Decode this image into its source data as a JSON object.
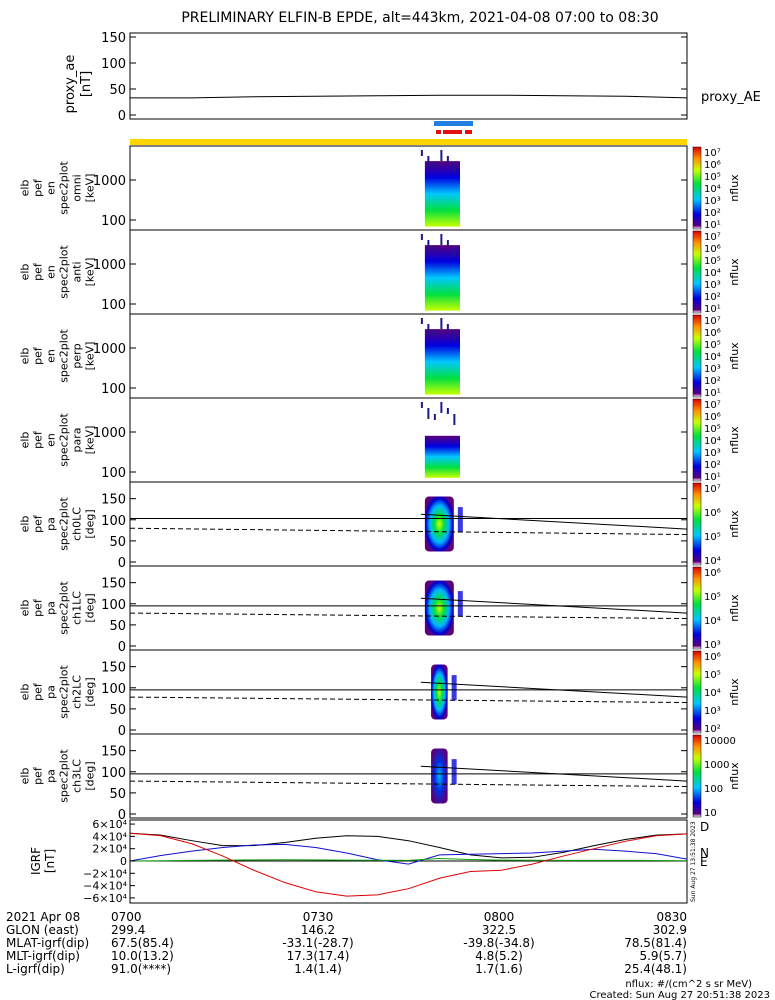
{
  "title": "PRELIMINARY ELFIN-B EPDE, alt=443km, 2021-04-08 07:00 to 08:30",
  "colors": {
    "bar_yellow": "#ffd500",
    "bar_blue": "#1f7fe0",
    "bar_red": "#e01010"
  },
  "proxy_panel": {
    "ylabel": [
      "proxy_ae",
      "[nT]"
    ],
    "yticks": [
      "150",
      "100",
      "50",
      "0"
    ],
    "legend": "proxy_AE"
  },
  "energy_panels": [
    {
      "ylabel": [
        "elb",
        "pef",
        "en",
        "spec2plot",
        "omni",
        "[keV]"
      ],
      "cb_ticks": [
        "10⁷",
        "10⁶",
        "10⁵",
        "10⁴",
        "10³",
        "10²",
        "10¹"
      ],
      "cb_label": "nflux"
    },
    {
      "ylabel": [
        "elb",
        "pef",
        "en",
        "spec2plot",
        "anti",
        "[keV]"
      ],
      "cb_ticks": [
        "10⁷",
        "10⁶",
        "10⁵",
        "10⁴",
        "10³",
        "10²",
        "10¹"
      ],
      "cb_label": "nflux"
    },
    {
      "ylabel": [
        "elb",
        "pef",
        "en",
        "spec2plot",
        "perp",
        "[keV]"
      ],
      "cb_ticks": [
        "10⁷",
        "10⁶",
        "10⁵",
        "10⁴",
        "10³",
        "10²",
        "10¹"
      ],
      "cb_label": "nflux"
    },
    {
      "ylabel": [
        "elb",
        "pef",
        "en",
        "spec2plot",
        "para",
        "[keV]"
      ],
      "cb_ticks": [
        "10⁷",
        "10⁶",
        "10⁵",
        "10⁴",
        "10³",
        "10²",
        "10¹"
      ],
      "cb_label": "nflux"
    }
  ],
  "energy_yticks": [
    "1000",
    "100"
  ],
  "pa_panels": [
    {
      "ylabel": [
        "elb",
        "pef",
        "pa",
        "spec2plot",
        "ch0LC",
        "[deg]"
      ],
      "cb_ticks": [
        "10⁷",
        "10⁶",
        "10⁵",
        "10⁴"
      ],
      "cb_label": "nflux"
    },
    {
      "ylabel": [
        "elb",
        "pef",
        "pa",
        "spec2plot",
        "ch1LC",
        "[deg]"
      ],
      "cb_ticks": [
        "10⁶",
        "10⁵",
        "10⁴",
        "10³"
      ],
      "cb_label": "nflux"
    },
    {
      "ylabel": [
        "elb",
        "pef",
        "pa",
        "spec2plot",
        "ch2LC",
        "[deg]"
      ],
      "cb_ticks": [
        "10⁶",
        "10⁵",
        "10⁴",
        "10³",
        "10²"
      ],
      "cb_label": "nflux"
    },
    {
      "ylabel": [
        "elb",
        "pef",
        "pa",
        "spec2plot",
        "ch3LC",
        "[deg]"
      ],
      "cb_ticks": [
        "10000",
        "1000",
        "100",
        "10"
      ],
      "cb_label": "nflux"
    }
  ],
  "pa_yticks": [
    "150",
    "100",
    "50",
    "0"
  ],
  "igrf_panel": {
    "ylabel": [
      "IGRF",
      "[nT]"
    ],
    "yticks": [
      "6×10⁴",
      "4×10⁴",
      "2×10⁴",
      "0",
      "−2×10⁴",
      "−4×10⁴",
      "−6×10⁴"
    ],
    "legend": [
      "D",
      "N",
      "E"
    ],
    "stamp": "Sun Aug 27 13:51:38 2023"
  },
  "footer": {
    "rows": [
      {
        "label": "2021 Apr 08",
        "vals": [
          "0700",
          "0730",
          "0800",
          "0830"
        ]
      },
      {
        "label": "GLON (east)",
        "vals": [
          "299.4",
          "146.2",
          "322.5",
          "302.9"
        ]
      },
      {
        "label": "MLAT-igrf(dip)",
        "vals": [
          "67.5(85.4)",
          "-33.1(-28.7)",
          "-39.8(-34.8)",
          "78.5(81.4)"
        ]
      },
      {
        "label": "MLT-igrf(dip)",
        "vals": [
          "10.0(13.2)",
          "17.3(17.4)",
          "4.8(5.2)",
          "5.9(5.7)"
        ]
      },
      {
        "label": "L-igrf(dip)",
        "vals": [
          "91.0(****)",
          "1.4(1.4)",
          "1.7(1.6)",
          "25.4(48.1)"
        ]
      }
    ],
    "units_note": "nflux: #/(cm^2 s sr MeV)",
    "created": "Created: Sun Aug 27 20:51:38 2023"
  },
  "chart_data": [
    {
      "type": "line",
      "panel": "proxy_ae",
      "title": "PRELIMINARY ELFIN-B EPDE, alt=443km, 2021-04-08 07:00 to 08:30",
      "xlabel": "",
      "ylabel": "proxy_ae [nT]",
      "ylim": [
        0,
        150
      ],
      "series": [
        {
          "name": "proxy_AE",
          "x": [
            "07:00",
            "07:10",
            "07:20",
            "07:30",
            "07:40",
            "07:50",
            "08:00",
            "08:10",
            "08:20",
            "08:30"
          ],
          "values": [
            33,
            33,
            35,
            36,
            37,
            38,
            38,
            37,
            36,
            33
          ]
        }
      ]
    },
    {
      "type": "heatmap",
      "panel": "en omni",
      "ylabel": "[keV]",
      "yscale": "log",
      "ylim": [
        50,
        7000
      ],
      "xlim": [
        "07:00",
        "08:30"
      ],
      "active_interval": [
        "07:47",
        "07:53"
      ],
      "colorbar": "nflux 10^1–10^7"
    },
    {
      "type": "heatmap",
      "panel": "en anti",
      "ylabel": "[keV]",
      "yscale": "log",
      "ylim": [
        50,
        7000
      ],
      "xlim": [
        "07:00",
        "08:30"
      ],
      "active_interval": [
        "07:47",
        "07:53"
      ],
      "colorbar": "nflux 10^1–10^7"
    },
    {
      "type": "heatmap",
      "panel": "en perp",
      "ylabel": "[keV]",
      "yscale": "log",
      "ylim": [
        50,
        7000
      ],
      "xlim": [
        "07:00",
        "08:30"
      ],
      "active_interval": [
        "07:47",
        "07:53"
      ],
      "colorbar": "nflux 10^1–10^7"
    },
    {
      "type": "heatmap",
      "panel": "en para",
      "ylabel": "[keV]",
      "yscale": "log",
      "ylim": [
        50,
        7000
      ],
      "xlim": [
        "07:00",
        "08:30"
      ],
      "active_interval": [
        "07:47",
        "07:53"
      ],
      "colorbar": "nflux 10^1–10^7"
    },
    {
      "type": "heatmap",
      "panel": "pa ch0LC",
      "ylabel": "[deg]",
      "ylim": [
        0,
        180
      ],
      "xlim": [
        "07:00",
        "08:30"
      ],
      "active_interval": [
        "07:47",
        "07:52"
      ],
      "lines": [
        {
          "style": "solid",
          "x": [
            "07:47",
            "08:30"
          ],
          "values": [
            113,
            78
          ]
        },
        {
          "style": "solid",
          "x": [
            "07:00",
            "08:30"
          ],
          "values": [
            103,
            103
          ]
        },
        {
          "style": "dashed",
          "x": [
            "07:00",
            "08:30"
          ],
          "values": [
            80,
            65
          ]
        }
      ]
    },
    {
      "type": "heatmap",
      "panel": "pa ch1LC",
      "ylabel": "[deg]",
      "ylim": [
        0,
        180
      ],
      "xlim": [
        "07:00",
        "08:30"
      ],
      "active_interval": [
        "07:47",
        "07:52"
      ],
      "lines": [
        {
          "style": "solid",
          "x": [
            "07:47",
            "08:30"
          ],
          "values": [
            113,
            78
          ]
        },
        {
          "style": "solid",
          "x": [
            "07:00",
            "08:30"
          ],
          "values": [
            95,
            95
          ]
        },
        {
          "style": "dashed",
          "x": [
            "07:00",
            "08:30"
          ],
          "values": [
            78,
            65
          ]
        }
      ]
    },
    {
      "type": "heatmap",
      "panel": "pa ch2LC",
      "ylabel": "[deg]",
      "ylim": [
        0,
        180
      ],
      "xlim": [
        "07:00",
        "08:30"
      ],
      "active_interval": [
        "07:48",
        "07:51"
      ],
      "lines": [
        {
          "style": "solid",
          "x": [
            "07:47",
            "08:30"
          ],
          "values": [
            113,
            78
          ]
        },
        {
          "style": "solid",
          "x": [
            "07:00",
            "08:30"
          ],
          "values": [
            95,
            95
          ]
        },
        {
          "style": "dashed",
          "x": [
            "07:00",
            "08:30"
          ],
          "values": [
            78,
            65
          ]
        }
      ]
    },
    {
      "type": "heatmap",
      "panel": "pa ch3LC",
      "ylabel": "[deg]",
      "ylim": [
        0,
        180
      ],
      "xlim": [
        "07:00",
        "08:30"
      ],
      "active_interval": [
        "07:48",
        "07:51"
      ],
      "lines": [
        {
          "style": "solid",
          "x": [
            "07:47",
            "08:30"
          ],
          "values": [
            113,
            78
          ]
        },
        {
          "style": "solid",
          "x": [
            "07:00",
            "08:30"
          ],
          "values": [
            95,
            95
          ]
        },
        {
          "style": "dashed",
          "x": [
            "07:00",
            "08:30"
          ],
          "values": [
            78,
            65
          ]
        }
      ]
    },
    {
      "type": "line",
      "panel": "IGRF",
      "ylabel": "IGRF [nT]",
      "ylim": [
        -65000,
        65000
      ],
      "x": [
        "07:00",
        "07:05",
        "07:10",
        "07:15",
        "07:20",
        "07:25",
        "07:30",
        "07:35",
        "07:40",
        "07:45",
        "07:50",
        "07:55",
        "08:00",
        "08:05",
        "08:10",
        "08:15",
        "08:20",
        "08:25",
        "08:30"
      ],
      "series": [
        {
          "name": "D",
          "color": "#000000",
          "values": [
            45000,
            42000,
            33000,
            25000,
            25000,
            30000,
            37000,
            41000,
            40000,
            33000,
            22000,
            10000,
            5000,
            6000,
            14000,
            25000,
            35000,
            42000,
            44000
          ]
        },
        {
          "name": "N",
          "color": "#1010d0",
          "values": [
            0,
            9000,
            16000,
            22000,
            26000,
            27000,
            22000,
            13000,
            2000,
            -5000,
            10000,
            11000,
            12000,
            13000,
            16000,
            19000,
            16000,
            12000,
            3000
          ]
        },
        {
          "name": "E",
          "color": "#10a010",
          "values": [
            0,
            500,
            1000,
            1500,
            1800,
            2000,
            1800,
            1500,
            1200,
            1000,
            4000,
            2500,
            1500,
            1200,
            1000,
            1000,
            1000,
            800,
            500
          ]
        },
        {
          "name": "",
          "color": "#e00000",
          "values": [
            45000,
            41000,
            28000,
            8000,
            -15000,
            -35000,
            -50000,
            -57000,
            -55000,
            -45000,
            -28000,
            -17000,
            -15000,
            -5000,
            8000,
            20000,
            32000,
            41000,
            44000
          ]
        }
      ]
    }
  ]
}
